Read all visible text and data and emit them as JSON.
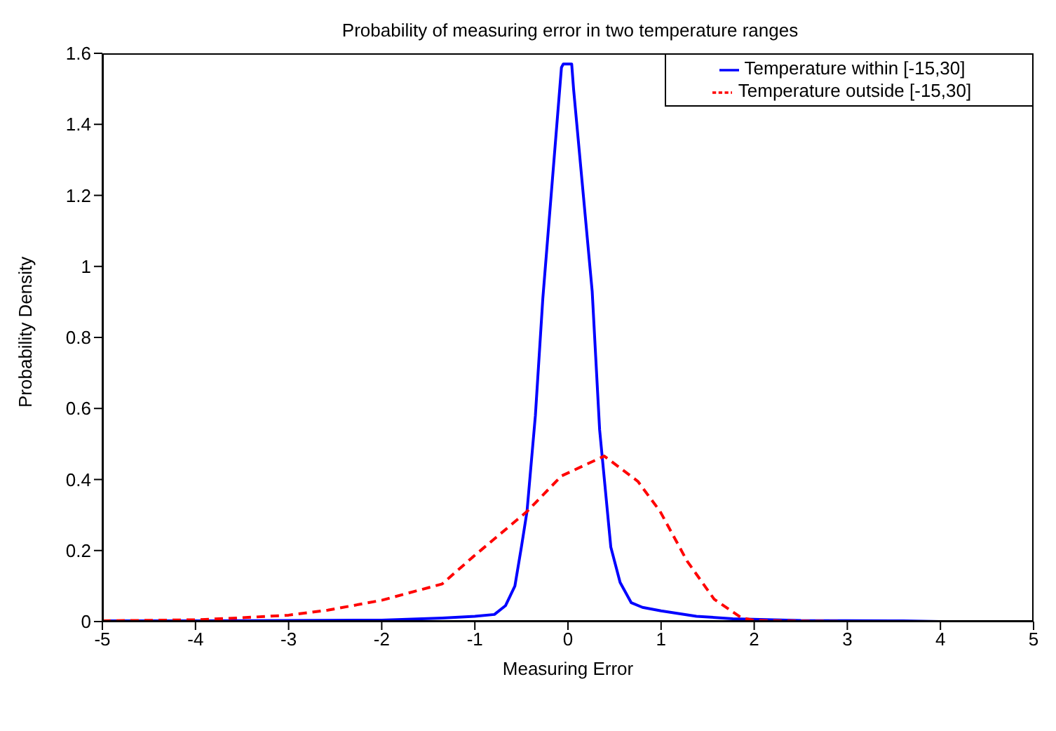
{
  "chart_data": {
    "type": "line",
    "title": "Probability of measuring error in two temperature ranges",
    "xlabel": "Measuring Error",
    "ylabel": "Probability Density",
    "xlim": [
      -5,
      5
    ],
    "xticks": [
      -5,
      -4,
      -3,
      -2,
      -1,
      0,
      1,
      2,
      3,
      4,
      5
    ],
    "ylim": [
      0,
      1.6
    ],
    "yticks": [
      0,
      0.2,
      0.4,
      0.6,
      0.8,
      1,
      1.2,
      1.4,
      1.6
    ],
    "grid": false,
    "legend": "top right",
    "marker": "none",
    "series": [
      {
        "name": "Temperature within [-15,30]",
        "color": "#0000ff",
        "line_style": "solid",
        "x": [
          -5,
          -4,
          -3,
          -2,
          -1.35,
          -1,
          -0.79,
          -0.67,
          -0.57,
          -0.5,
          -0.44,
          -0.35,
          -0.27,
          -0.07,
          -0.05,
          0.04,
          0.06,
          0.26,
          0.34,
          0.46,
          0.56,
          0.68,
          0.8,
          1,
          1.38,
          1.77,
          2.5,
          3.6,
          4,
          5
        ],
        "values": [
          0.002,
          0.002,
          0.003,
          0.004,
          0.01,
          0.015,
          0.02,
          0.045,
          0.1,
          0.21,
          0.31,
          0.58,
          0.91,
          1.56,
          1.57,
          1.57,
          1.5,
          0.93,
          0.54,
          0.21,
          0.11,
          0.053,
          0.04,
          0.03,
          0.015,
          0.008,
          0.003,
          0.002,
          0,
          0
        ]
      },
      {
        "name": "Temperature outside [-15,30]",
        "color": "#ff0000",
        "line_style": "dashed",
        "x": [
          -5,
          -4,
          -3.56,
          -3,
          -2.58,
          -2,
          -1.35,
          -1.03,
          -0.44,
          -0.07,
          0.39,
          0.75,
          0.99,
          1.28,
          1.57,
          1.86,
          2,
          3,
          4,
          5
        ],
        "values": [
          0.002,
          0.005,
          0.01,
          0.018,
          0.032,
          0.06,
          0.106,
          0.18,
          0.31,
          0.41,
          0.466,
          0.395,
          0.31,
          0.17,
          0.063,
          0.011,
          0.003,
          0,
          0,
          0
        ]
      }
    ]
  }
}
